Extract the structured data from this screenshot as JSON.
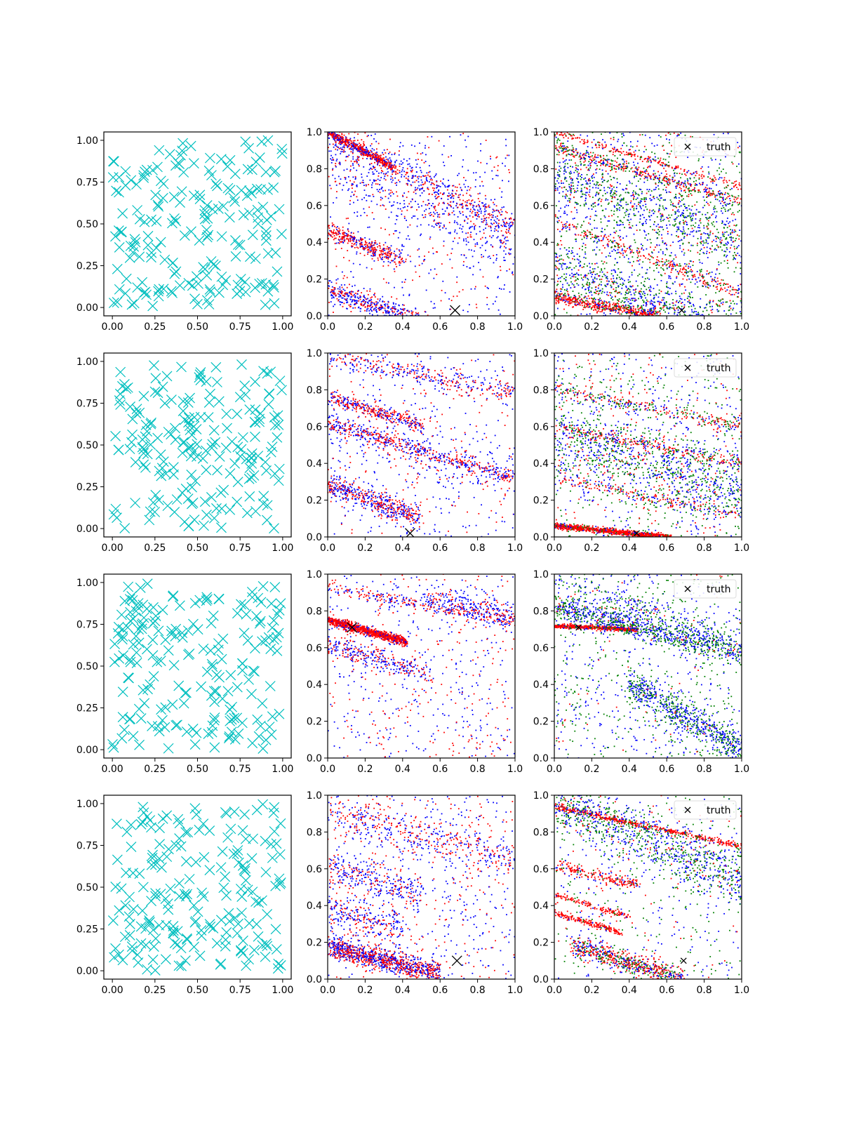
{
  "figure": {
    "rows": 4,
    "cols": 3,
    "axis_tick_labels": {
      "col_1": [
        "0.00",
        "0.25",
        "0.50",
        "0.75",
        "1.00"
      ],
      "col_2_3": [
        "0.0",
        "0.2",
        "0.4",
        "0.6",
        "0.8",
        "1.0"
      ]
    },
    "legend_label": "truth",
    "colors": {
      "samples": "#00bfbf",
      "red": "#ff0000",
      "blue": "#0000ff",
      "green": "#008000",
      "truth": "#000000"
    }
  },
  "chart_data": [
    {
      "row": 1,
      "col": 1,
      "type": "scatter",
      "marker": "x",
      "color": "#00bfbf",
      "n_points": 200,
      "xlim": [
        -0.05,
        1.05
      ],
      "ylim": [
        -0.05,
        1.05
      ],
      "grid": false
    },
    {
      "row": 1,
      "col": 2,
      "type": "scatter",
      "marker": ".",
      "series": [
        "red",
        "blue"
      ],
      "xlim": [
        0,
        1
      ],
      "ylim": [
        0,
        1
      ],
      "truth": [
        0.68,
        0.03
      ],
      "legend": false,
      "bands": [
        {
          "x0": 0,
          "y0": 1.0,
          "slope": -0.55,
          "w": 0.012,
          "n": 500,
          "red": 0.85,
          "xmax": 0.35
        },
        {
          "x0": 0,
          "y0": 0.97,
          "slope": -0.48,
          "w": 0.045,
          "n": 600,
          "red": 0.4
        },
        {
          "x0": 0,
          "y0": 0.47,
          "slope": -0.42,
          "w": 0.025,
          "n": 350,
          "red": 0.75,
          "xmax": 0.4
        },
        {
          "x0": 0,
          "y0": 0.14,
          "slope": -0.35,
          "w": 0.03,
          "n": 500,
          "red": 0.4,
          "xmax": 0.55
        },
        {
          "x0": 0,
          "y0": 0.8,
          "slope": -0.45,
          "w": 0.06,
          "n": 300,
          "red": 0.3
        }
      ],
      "noise": {
        "n": 500,
        "red": 0.35
      }
    },
    {
      "row": 1,
      "col": 3,
      "type": "scatter",
      "marker": ".",
      "series": [
        "red",
        "blue",
        "green"
      ],
      "xlim": [
        0,
        1
      ],
      "ylim": [
        0,
        1
      ],
      "truth": [
        0.68,
        0.03
      ],
      "legend": true,
      "bands": [
        {
          "x0": 0,
          "y0": 1.0,
          "slope": -0.3,
          "w": 0.01,
          "n": 200,
          "red": 0.9
        },
        {
          "x0": 0,
          "y0": 0.92,
          "slope": -0.3,
          "w": 0.015,
          "n": 400,
          "red": 0.6
        },
        {
          "x0": 0,
          "y0": 0.52,
          "slope": -0.4,
          "w": 0.02,
          "n": 300,
          "red": 0.7
        },
        {
          "x0": 0,
          "y0": 0.1,
          "slope": -0.18,
          "w": 0.015,
          "n": 500,
          "red": 0.8,
          "xmax": 0.55
        },
        {
          "x0": 0,
          "y0": 0.75,
          "slope": -0.35,
          "w": 0.08,
          "n": 700,
          "red": 0.1
        },
        {
          "x0": 0,
          "y0": 0.25,
          "slope": -0.35,
          "w": 0.07,
          "n": 700,
          "red": 0.1
        }
      ],
      "noise": {
        "n": 1200,
        "red": 0.2
      }
    },
    {
      "row": 2,
      "col": 1,
      "type": "scatter",
      "marker": "x",
      "color": "#00bfbf",
      "n_points": 200,
      "xlim": [
        -0.05,
        1.05
      ],
      "ylim": [
        -0.05,
        1.05
      ],
      "grid": false
    },
    {
      "row": 2,
      "col": 2,
      "type": "scatter",
      "marker": ".",
      "series": [
        "red",
        "blue"
      ],
      "xlim": [
        0,
        1
      ],
      "ylim": [
        0,
        1
      ],
      "truth": [
        0.44,
        0.02
      ],
      "legend": false,
      "bands": [
        {
          "x0": 0,
          "y0": 0.98,
          "slope": -0.2,
          "w": 0.03,
          "n": 350,
          "red": 0.45
        },
        {
          "x0": 0,
          "y0": 0.76,
          "slope": -0.3,
          "w": 0.02,
          "n": 350,
          "red": 0.6,
          "xmax": 0.5
        },
        {
          "x0": 0,
          "y0": 0.62,
          "slope": -0.3,
          "w": 0.02,
          "n": 450,
          "red": 0.55
        },
        {
          "x0": 0,
          "y0": 0.28,
          "slope": -0.35,
          "w": 0.03,
          "n": 500,
          "red": 0.5,
          "xmax": 0.5
        },
        {
          "x0": 0,
          "y0": 0.6,
          "slope": -0.3,
          "w": 0.08,
          "n": 250,
          "red": 0.3
        }
      ],
      "noise": {
        "n": 450,
        "red": 0.35
      }
    },
    {
      "row": 2,
      "col": 3,
      "type": "scatter",
      "marker": ".",
      "series": [
        "red",
        "blue",
        "green"
      ],
      "xlim": [
        0,
        1
      ],
      "ylim": [
        0,
        1
      ],
      "truth": [
        0.44,
        0.02
      ],
      "legend": true,
      "bands": [
        {
          "x0": 0,
          "y0": 0.8,
          "slope": -0.2,
          "w": 0.02,
          "n": 300,
          "red": 0.45
        },
        {
          "x0": 0,
          "y0": 0.6,
          "slope": -0.2,
          "w": 0.015,
          "n": 250,
          "red": 0.8
        },
        {
          "x0": 0,
          "y0": 0.32,
          "slope": -0.2,
          "w": 0.015,
          "n": 200,
          "red": 0.7
        },
        {
          "x0": 0,
          "y0": 0.06,
          "slope": -0.1,
          "w": 0.008,
          "n": 900,
          "red": 0.85,
          "xmax": 0.62
        },
        {
          "x0": 0,
          "y0": 0.55,
          "slope": -0.3,
          "w": 0.1,
          "n": 900,
          "red": 0.08
        }
      ],
      "noise": {
        "n": 900,
        "red": 0.2
      }
    },
    {
      "row": 3,
      "col": 1,
      "type": "scatter",
      "marker": "x",
      "color": "#00bfbf",
      "n_points": 200,
      "xlim": [
        -0.05,
        1.05
      ],
      "ylim": [
        -0.05,
        1.05
      ],
      "grid": false
    },
    {
      "row": 3,
      "col": 2,
      "type": "scatter",
      "marker": ".",
      "series": [
        "red",
        "blue"
      ],
      "xlim": [
        0,
        1
      ],
      "ylim": [
        0,
        1
      ],
      "truth": [
        0.13,
        0.71
      ],
      "legend": false,
      "bands": [
        {
          "x0": 0,
          "y0": 0.75,
          "slope": -0.28,
          "w": 0.012,
          "n": 1000,
          "red": 0.85,
          "xmax": 0.42
        },
        {
          "x0": 0,
          "y0": 0.93,
          "slope": -0.2,
          "w": 0.015,
          "n": 250,
          "red": 0.55
        },
        {
          "x0": 0.5,
          "y0": 0.87,
          "slope": -0.2,
          "w": 0.03,
          "n": 250,
          "red": 0.4
        },
        {
          "x0": 0,
          "y0": 0.62,
          "slope": -0.3,
          "w": 0.03,
          "n": 300,
          "red": 0.4,
          "xmax": 0.55
        }
      ],
      "noise": {
        "n": 600,
        "red": 0.45
      }
    },
    {
      "row": 3,
      "col": 3,
      "type": "scatter",
      "marker": ".",
      "series": [
        "red",
        "blue",
        "green"
      ],
      "xlim": [
        0,
        1
      ],
      "ylim": [
        0,
        1
      ],
      "truth": [
        0.13,
        0.71
      ],
      "legend": true,
      "bands": [
        {
          "x0": 0,
          "y0": 0.72,
          "slope": -0.05,
          "w": 0.006,
          "n": 500,
          "red": 0.9,
          "xmax": 0.45
        },
        {
          "x0": 0,
          "y0": 0.82,
          "slope": -0.25,
          "w": 0.035,
          "n": 900,
          "red": 0.05
        },
        {
          "x0": 0.4,
          "y0": 0.4,
          "slope": -0.6,
          "w": 0.05,
          "n": 700,
          "red": 0.02
        },
        {
          "x0": 0,
          "y0": 0.97,
          "slope": -0.35,
          "w": 0.04,
          "n": 300,
          "red": 0.05
        }
      ],
      "noise": {
        "n": 800,
        "red": 0.05
      }
    },
    {
      "row": 4,
      "col": 1,
      "type": "scatter",
      "marker": "x",
      "color": "#00bfbf",
      "n_points": 200,
      "xlim": [
        -0.05,
        1.05
      ],
      "ylim": [
        -0.05,
        1.05
      ],
      "grid": false
    },
    {
      "row": 4,
      "col": 2,
      "type": "scatter",
      "marker": ".",
      "series": [
        "red",
        "blue"
      ],
      "xlim": [
        0,
        1
      ],
      "ylim": [
        0,
        1
      ],
      "truth": [
        0.69,
        0.1
      ],
      "legend": false,
      "bands": [
        {
          "x0": 0,
          "y0": 0.18,
          "slope": -0.25,
          "w": 0.03,
          "n": 1000,
          "red": 0.55,
          "xmax": 0.6
        },
        {
          "x0": 0,
          "y0": 0.9,
          "slope": -0.25,
          "w": 0.05,
          "n": 450,
          "red": 0.5
        },
        {
          "x0": 0,
          "y0": 0.6,
          "slope": -0.3,
          "w": 0.05,
          "n": 300,
          "red": 0.35,
          "xmax": 0.5
        },
        {
          "x0": 0,
          "y0": 0.38,
          "slope": -0.3,
          "w": 0.05,
          "n": 250,
          "red": 0.4,
          "xmax": 0.4
        }
      ],
      "noise": {
        "n": 600,
        "red": 0.4
      }
    },
    {
      "row": 4,
      "col": 3,
      "type": "scatter",
      "marker": ".",
      "series": [
        "red",
        "blue",
        "green"
      ],
      "xlim": [
        0,
        1
      ],
      "ylim": [
        0,
        1
      ],
      "truth": [
        0.69,
        0.1
      ],
      "legend": true,
      "bands": [
        {
          "x0": 0,
          "y0": 0.94,
          "slope": -0.22,
          "w": 0.008,
          "n": 500,
          "red": 0.9
        },
        {
          "x0": 0,
          "y0": 0.46,
          "slope": -0.3,
          "w": 0.008,
          "n": 150,
          "red": 0.9,
          "xmax": 0.4
        },
        {
          "x0": 0,
          "y0": 0.36,
          "slope": -0.3,
          "w": 0.008,
          "n": 200,
          "red": 0.9,
          "xmax": 0.35
        },
        {
          "x0": 0,
          "y0": 0.62,
          "slope": -0.25,
          "w": 0.015,
          "n": 200,
          "red": 0.85,
          "xmax": 0.45
        },
        {
          "x0": 0.1,
          "y0": 0.18,
          "slope": -0.3,
          "w": 0.03,
          "n": 700,
          "red": 0.5,
          "xmax": 0.7
        },
        {
          "x0": 0,
          "y0": 0.95,
          "slope": -0.4,
          "w": 0.08,
          "n": 1000,
          "red": 0.08
        }
      ],
      "noise": {
        "n": 500,
        "red": 0.2
      }
    }
  ]
}
